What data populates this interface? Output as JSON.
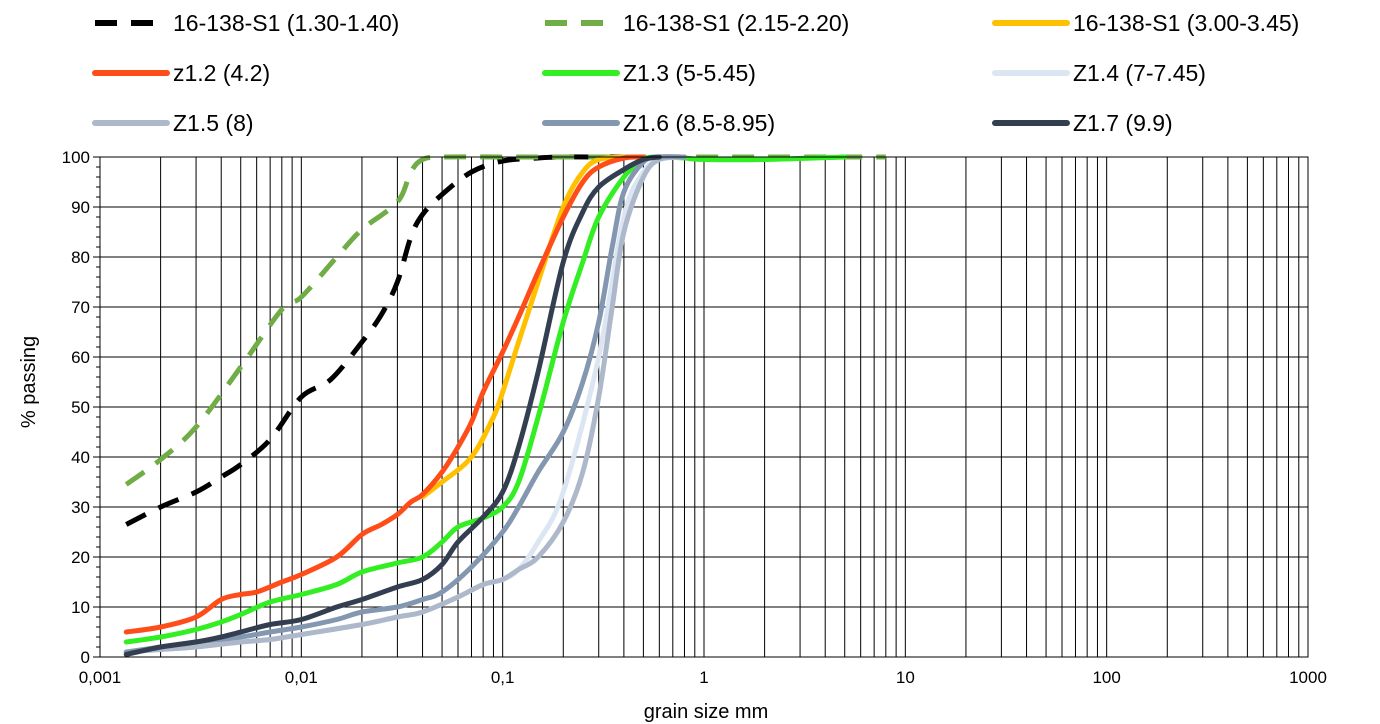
{
  "chart_data": {
    "type": "line",
    "title": "",
    "xlabel": "grain size mm",
    "ylabel": "% passing",
    "x_scale": "log",
    "xlim": [
      0.001,
      1000
    ],
    "ylim": [
      0,
      100
    ],
    "x_ticks": [
      "0,001",
      "0,01",
      "0,1",
      "1",
      "10",
      "100",
      "1000"
    ],
    "y_ticks": [
      "0",
      "10",
      "20",
      "30",
      "40",
      "50",
      "60",
      "70",
      "80",
      "90",
      "100"
    ],
    "grid": true,
    "legend_position": "top",
    "series": [
      {
        "name": "16-138-S1 (1.30-1.40)",
        "color": "#000000",
        "dash": "dashed",
        "points": [
          [
            0.00135,
            26.5
          ],
          [
            0.002,
            30
          ],
          [
            0.003,
            33
          ],
          [
            0.004,
            36
          ],
          [
            0.005,
            38.5
          ],
          [
            0.007,
            43.5
          ],
          [
            0.01,
            52
          ],
          [
            0.014,
            55.5
          ],
          [
            0.02,
            63
          ],
          [
            0.025,
            68.5
          ],
          [
            0.03,
            75
          ],
          [
            0.035,
            84
          ],
          [
            0.04,
            88.5
          ],
          [
            0.05,
            92.5
          ],
          [
            0.07,
            97
          ],
          [
            0.1,
            99.2
          ],
          [
            0.15,
            99.8
          ],
          [
            0.2,
            100
          ],
          [
            0.3,
            100
          ],
          [
            0.5,
            100
          ]
        ]
      },
      {
        "name": "16-138-S1 (2.15-2.20)",
        "color": "#70ad47",
        "dash": "dashed",
        "points": [
          [
            0.00135,
            34.5
          ],
          [
            0.002,
            39.5
          ],
          [
            0.003,
            46
          ],
          [
            0.005,
            58
          ],
          [
            0.008,
            69.5
          ],
          [
            0.01,
            72
          ],
          [
            0.015,
            80
          ],
          [
            0.02,
            85.5
          ],
          [
            0.03,
            91
          ],
          [
            0.035,
            97
          ],
          [
            0.04,
            99.5
          ],
          [
            0.05,
            100
          ],
          [
            0.1,
            100
          ],
          [
            0.5,
            100
          ],
          [
            1,
            100
          ],
          [
            2,
            100
          ],
          [
            5,
            100
          ],
          [
            8,
            100
          ]
        ]
      },
      {
        "name": "16-138-S1 (3.00-3.45)",
        "color": "#ffc000",
        "dash": "solid",
        "points": [
          [
            0.04,
            32
          ],
          [
            0.05,
            35
          ],
          [
            0.07,
            40
          ],
          [
            0.09,
            48
          ],
          [
            0.1,
            53
          ],
          [
            0.12,
            63
          ],
          [
            0.15,
            75
          ],
          [
            0.2,
            90
          ],
          [
            0.25,
            97
          ],
          [
            0.3,
            99.5
          ],
          [
            0.4,
            100
          ]
        ]
      },
      {
        "name": "z1.2 (4.2)",
        "color": "#ff4d1a",
        "dash": "solid",
        "points": [
          [
            0.00135,
            5
          ],
          [
            0.002,
            6
          ],
          [
            0.003,
            8
          ],
          [
            0.004,
            11.5
          ],
          [
            0.005,
            12.5
          ],
          [
            0.006,
            13
          ],
          [
            0.008,
            15
          ],
          [
            0.01,
            16.5
          ],
          [
            0.015,
            20
          ],
          [
            0.02,
            24.5
          ],
          [
            0.025,
            26.5
          ],
          [
            0.03,
            28.5
          ],
          [
            0.035,
            31
          ],
          [
            0.04,
            32.5
          ],
          [
            0.05,
            37
          ],
          [
            0.06,
            42
          ],
          [
            0.07,
            47
          ],
          [
            0.08,
            53
          ],
          [
            0.1,
            61
          ],
          [
            0.12,
            68
          ],
          [
            0.15,
            77
          ],
          [
            0.2,
            88
          ],
          [
            0.25,
            95
          ],
          [
            0.3,
            98
          ],
          [
            0.4,
            99.8
          ],
          [
            0.5,
            100
          ]
        ]
      },
      {
        "name": "Z1.3 (5-5.45)",
        "color": "#33ee22",
        "dash": "solid",
        "points": [
          [
            0.00135,
            3
          ],
          [
            0.002,
            4
          ],
          [
            0.003,
            5.5
          ],
          [
            0.004,
            7
          ],
          [
            0.005,
            8.5
          ],
          [
            0.007,
            11
          ],
          [
            0.01,
            12.5
          ],
          [
            0.015,
            14.5
          ],
          [
            0.02,
            17
          ],
          [
            0.03,
            18.8
          ],
          [
            0.04,
            20
          ],
          [
            0.05,
            23
          ],
          [
            0.06,
            26
          ],
          [
            0.08,
            27.8
          ],
          [
            0.1,
            30
          ],
          [
            0.12,
            35
          ],
          [
            0.15,
            48
          ],
          [
            0.2,
            67
          ],
          [
            0.25,
            79
          ],
          [
            0.3,
            88
          ],
          [
            0.4,
            96
          ],
          [
            0.5,
            99.5
          ],
          [
            0.6,
            100
          ],
          [
            0.8,
            99.8
          ],
          [
            1,
            99.5
          ],
          [
            2,
            99.5
          ],
          [
            5,
            100
          ]
        ]
      },
      {
        "name": "Z1.4 (7-7.45)",
        "color": "#dce6f2",
        "dash": "solid",
        "points": [
          [
            0.00135,
            1
          ],
          [
            0.002,
            1.5
          ],
          [
            0.003,
            2
          ],
          [
            0.005,
            3
          ],
          [
            0.007,
            3.5
          ],
          [
            0.01,
            4.5
          ],
          [
            0.02,
            6.5
          ],
          [
            0.03,
            8
          ],
          [
            0.04,
            9
          ],
          [
            0.06,
            12
          ],
          [
            0.08,
            14.5
          ],
          [
            0.1,
            15.5
          ],
          [
            0.12,
            17.5
          ],
          [
            0.15,
            23
          ],
          [
            0.2,
            33
          ],
          [
            0.3,
            60
          ],
          [
            0.4,
            88
          ],
          [
            0.5,
            97
          ],
          [
            0.6,
            99.5
          ],
          [
            0.8,
            100
          ]
        ]
      },
      {
        "name": "Z1.5 (8)",
        "color": "#adb9ca",
        "dash": "solid",
        "points": [
          [
            0.00135,
            1
          ],
          [
            0.002,
            1.5
          ],
          [
            0.003,
            2
          ],
          [
            0.005,
            3
          ],
          [
            0.007,
            3.5
          ],
          [
            0.01,
            4.5
          ],
          [
            0.02,
            6.5
          ],
          [
            0.03,
            8
          ],
          [
            0.04,
            9
          ],
          [
            0.06,
            12
          ],
          [
            0.08,
            14.5
          ],
          [
            0.1,
            15.5
          ],
          [
            0.12,
            17.5
          ],
          [
            0.15,
            20
          ],
          [
            0.2,
            27
          ],
          [
            0.25,
            37
          ],
          [
            0.3,
            52
          ],
          [
            0.35,
            70
          ],
          [
            0.4,
            85
          ],
          [
            0.5,
            96
          ],
          [
            0.6,
            99.5
          ],
          [
            0.8,
            100
          ]
        ]
      },
      {
        "name": "Z1.6 (8.5-8.95)",
        "color": "#8497b0",
        "dash": "solid",
        "points": [
          [
            0.00135,
            1
          ],
          [
            0.002,
            2
          ],
          [
            0.003,
            3
          ],
          [
            0.005,
            4
          ],
          [
            0.007,
            5
          ],
          [
            0.01,
            6
          ],
          [
            0.015,
            7.5
          ],
          [
            0.02,
            9
          ],
          [
            0.03,
            10
          ],
          [
            0.04,
            11.5
          ],
          [
            0.05,
            13
          ],
          [
            0.07,
            18
          ],
          [
            0.1,
            25
          ],
          [
            0.12,
            30
          ],
          [
            0.15,
            37
          ],
          [
            0.2,
            45
          ],
          [
            0.25,
            55
          ],
          [
            0.3,
            67
          ],
          [
            0.35,
            82
          ],
          [
            0.4,
            93
          ],
          [
            0.5,
            99
          ],
          [
            0.6,
            100
          ],
          [
            0.8,
            100
          ]
        ]
      },
      {
        "name": "Z1.7 (9.9)",
        "color": "#333f50",
        "dash": "solid",
        "points": [
          [
            0.00135,
            0.5
          ],
          [
            0.002,
            2
          ],
          [
            0.003,
            3
          ],
          [
            0.004,
            4
          ],
          [
            0.005,
            5
          ],
          [
            0.007,
            6.5
          ],
          [
            0.01,
            7.5
          ],
          [
            0.015,
            10
          ],
          [
            0.02,
            11.5
          ],
          [
            0.03,
            14
          ],
          [
            0.04,
            15.5
          ],
          [
            0.05,
            18.5
          ],
          [
            0.06,
            23
          ],
          [
            0.08,
            28
          ],
          [
            0.1,
            33
          ],
          [
            0.12,
            42
          ],
          [
            0.15,
            57
          ],
          [
            0.2,
            79
          ],
          [
            0.25,
            89
          ],
          [
            0.3,
            94
          ],
          [
            0.4,
            97.5
          ],
          [
            0.5,
            99.5
          ],
          [
            0.6,
            100
          ]
        ]
      }
    ]
  }
}
